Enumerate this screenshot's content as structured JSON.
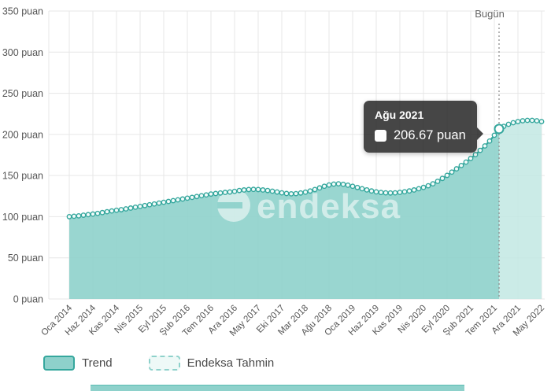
{
  "watermark": {
    "text": "endeksa"
  },
  "tooltip": {
    "title": "Ağu 2021",
    "value": "206.67 puan"
  },
  "legend": {
    "trend_label": "Trend",
    "forecast_label": "Endeksa Tahmin"
  },
  "chart_data": {
    "type": "area",
    "title": "",
    "xlabel": "",
    "ylabel": "puan",
    "ylim": [
      0,
      350
    ],
    "y_tick_step": 50,
    "grid": true,
    "legend_position": "bottom-left",
    "frequency": "monthly",
    "y_tick_labels": [
      "0 puan",
      "50 puan",
      "100 puan",
      "150 puan",
      "200 puan",
      "250 puan",
      "300 puan",
      "350 puan"
    ],
    "x_tick_labels": [
      "Oca 2014",
      "Haz 2014",
      "Kas 2014",
      "Nis 2015",
      "Eyl 2015",
      "Şub 2016",
      "Tem 2016",
      "Ara 2016",
      "May 2017",
      "Eki 2017",
      "Mar 2018",
      "Ağu 2018",
      "Oca 2019",
      "Haz 2019",
      "Kas 2019",
      "Nis 2020",
      "Eyl 2020",
      "Şub 2021",
      "Tem 2021",
      "Ara 2021",
      "May 2022"
    ],
    "series": [
      {
        "name": "Trend",
        "start": "Oca 2014",
        "end": "Ağu 2021",
        "values": [
          100,
          100.5,
          101,
          101.8,
          102.5,
          103.2,
          104,
          105,
          106,
          107,
          107.8,
          108.5,
          109.5,
          110.5,
          111.5,
          112.5,
          113.5,
          114.5,
          115.5,
          116.5,
          117.5,
          118.5,
          119.5,
          120.5,
          121.5,
          122.5,
          123.5,
          124.5,
          125.5,
          126.5,
          127.5,
          128.2,
          128.8,
          129.5,
          130,
          130.8,
          131.8,
          132.5,
          133,
          133.2,
          133,
          132.5,
          131.8,
          131,
          130,
          129,
          128.2,
          127.8,
          128,
          128.8,
          129.8,
          131.2,
          133,
          135,
          137,
          138.5,
          139.6,
          140,
          139.4,
          138.3,
          137,
          135.5,
          134,
          132.6,
          131.3,
          130.2,
          129.4,
          129,
          128.8,
          129,
          129.6,
          130.3,
          131.3,
          132.5,
          134,
          135.6,
          137.6,
          140,
          143,
          146.5,
          150.2,
          154.2,
          158.2,
          162.2,
          166.4,
          170.8,
          175.5,
          180.6,
          186,
          192,
          199,
          206.67
        ]
      },
      {
        "name": "Endeksa Tahmin",
        "start": "Ağu 2021",
        "end": "May 2022",
        "values": [
          206.67,
          209.8,
          212.3,
          214.2,
          215.6,
          216.6,
          217.1,
          217.1,
          216.6,
          215.6
        ]
      }
    ],
    "highlight": {
      "month": "Ağu 2021",
      "value": 206.67
    },
    "today_line": {
      "label": "Bugün",
      "position": "Ağu 2021"
    },
    "colors": {
      "line": "#35a79d",
      "fill": "#8ed1cb",
      "forecast_fill": "#c2e8e3",
      "marker_fill": "#f2fbfa",
      "grid": "#e7e7e7",
      "axis_text": "#555555",
      "today_line": "#8f8f8f"
    }
  }
}
